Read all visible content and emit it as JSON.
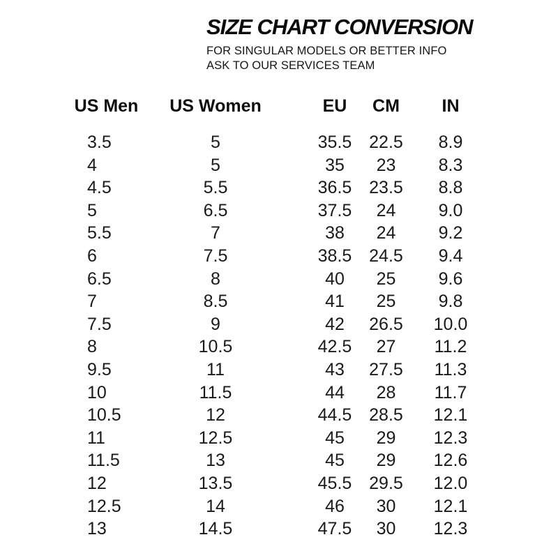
{
  "header": {
    "title": "SIZE CHART CONVERSION",
    "subtitle_line1": "FOR SINGULAR MODELS OR BETTER INFO",
    "subtitle_line2": "ASK TO OUR SERVICES TEAM"
  },
  "chart_data": {
    "type": "table",
    "title": "SIZE CHART CONVERSION",
    "columns": [
      "US Men",
      "US Women",
      "EU",
      "CM",
      "IN"
    ],
    "rows": [
      [
        "3.5",
        "5",
        "35.5",
        "22.5",
        "8.9"
      ],
      [
        "4",
        "5",
        "35",
        "23",
        "8.3"
      ],
      [
        "4.5",
        "5.5",
        "36.5",
        "23.5",
        "8.8"
      ],
      [
        "5",
        "6.5",
        "37.5",
        "24",
        "9.0"
      ],
      [
        "5.5",
        "7",
        "38",
        "24",
        "9.2"
      ],
      [
        "6",
        "7.5",
        "38.5",
        "24.5",
        "9.4"
      ],
      [
        "6.5",
        "8",
        "40",
        "25",
        "9.6"
      ],
      [
        "7",
        "8.5",
        "41",
        "25",
        "9.8"
      ],
      [
        "7.5",
        "9",
        "42",
        "26.5",
        "10.0"
      ],
      [
        "8",
        "10.5",
        "42.5",
        "27",
        "11.2"
      ],
      [
        "9.5",
        "11",
        "43",
        "27.5",
        "11.3"
      ],
      [
        "10",
        "11.5",
        "44",
        "28",
        "11.7"
      ],
      [
        "10.5",
        "12",
        "44.5",
        "28.5",
        "12.1"
      ],
      [
        "11",
        "12.5",
        "45",
        "29",
        "12.3"
      ],
      [
        "11.5",
        "13",
        "45",
        "29",
        "12.6"
      ],
      [
        "12",
        "13.5",
        "45.5",
        "29.5",
        "12.0"
      ],
      [
        "12.5",
        "14",
        "46",
        "30",
        "12.1"
      ],
      [
        "13",
        "14.5",
        "47.5",
        "30",
        "12.3"
      ]
    ]
  },
  "colors": {
    "background": "#ffffff",
    "title_text": "#0a0a0a",
    "body_text": "#1a1a1a"
  }
}
